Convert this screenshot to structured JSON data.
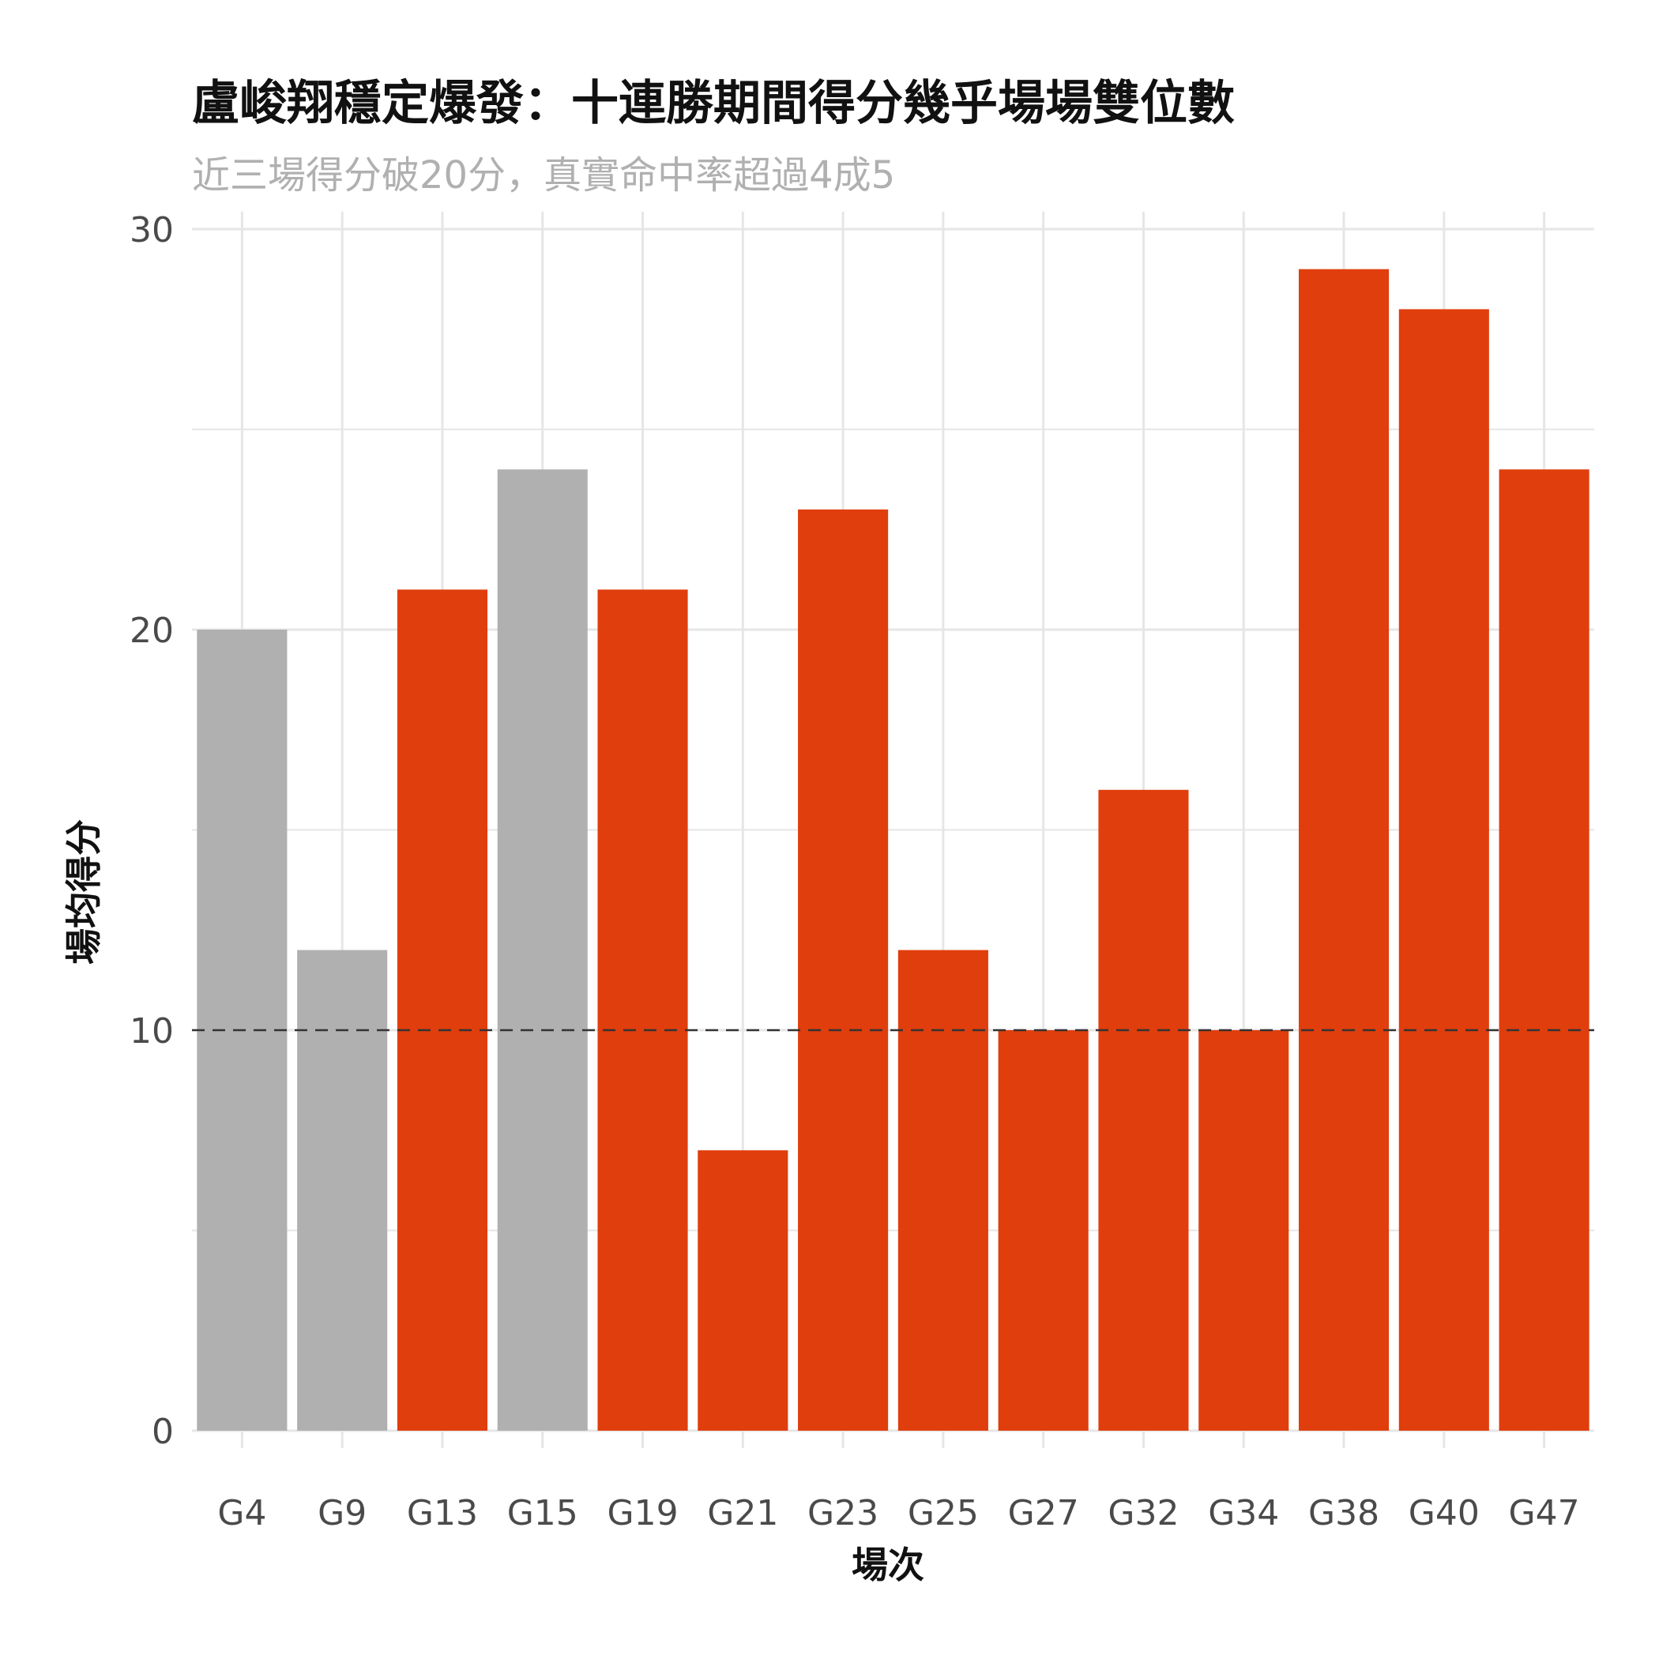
{
  "chart_data": {
    "type": "bar",
    "title": "盧峻翔穩定爆發：十連勝期間得分幾乎場場雙位數",
    "subtitle": "近三場得分破20分，真實命中率超過4成5",
    "xlabel": "場次",
    "ylabel": "場均得分",
    "categories": [
      "G4",
      "G9",
      "G13",
      "G15",
      "G19",
      "G21",
      "G23",
      "G25",
      "G27",
      "G32",
      "G34",
      "G38",
      "G40",
      "G47"
    ],
    "values": [
      20,
      12,
      21,
      24,
      21,
      7,
      23,
      12,
      10,
      16,
      10,
      29,
      28,
      24
    ],
    "highlight": [
      false,
      false,
      true,
      false,
      true,
      true,
      true,
      true,
      true,
      true,
      true,
      true,
      true,
      true
    ],
    "colors": {
      "highlight": "#e03e0d",
      "base": "#b0b0b0",
      "grid": "#e6e6e6",
      "reference_line": "#333333"
    },
    "ylim": [
      0,
      30
    ],
    "yticks": [
      0,
      10,
      20,
      30
    ],
    "reference_line": {
      "y": 10,
      "style": "dashed"
    },
    "grid": true,
    "legend": "none"
  }
}
